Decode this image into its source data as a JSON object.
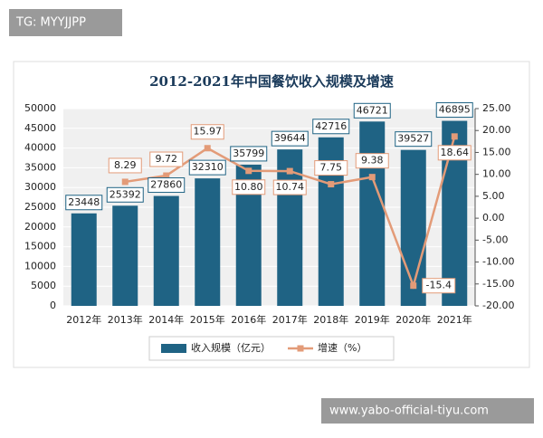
{
  "overlay": {
    "top_label": "TG: MYYJJPP",
    "bottom_label": "www.yabo-official-tiyu.com"
  },
  "chart_data": {
    "type": "bar",
    "title": "2012-2021年中国餐饮收入规模及增速",
    "categories": [
      "2012年",
      "2013年",
      "2014年",
      "2015年",
      "2016年",
      "2017年",
      "2018年",
      "2019年",
      "2020年",
      "2021年"
    ],
    "series": [
      {
        "name": "收入规模（亿元）",
        "color": "#1f6384",
        "values": [
          23448,
          25392,
          27860,
          32310,
          35799,
          39644,
          42716,
          46721,
          39527,
          46895
        ]
      },
      {
        "name": "增速（%）",
        "color": "#e39b78",
        "type": "line",
        "axis": "y2",
        "values": [
          null,
          8.29,
          9.72,
          15.97,
          10.8,
          10.74,
          7.75,
          9.38,
          -15.4,
          18.64
        ],
        "value_labels": [
          null,
          "8.29",
          "9.72",
          "15.97",
          "10.80",
          "10.74",
          "7.75",
          "9.38",
          "-15.4",
          "18.64"
        ]
      }
    ],
    "ylim": [
      0,
      50000
    ],
    "yticks": [
      0,
      5000,
      10000,
      15000,
      20000,
      25000,
      30000,
      35000,
      40000,
      45000,
      50000
    ],
    "y2lim": [
      -20,
      25
    ],
    "y2ticks": [
      {
        "value": -20,
        "label": "-20.00"
      },
      {
        "value": -15,
        "label": "-15.00"
      },
      {
        "value": -10,
        "label": "-10.00"
      },
      {
        "value": -5,
        "label": "-5.00"
      },
      {
        "value": 0,
        "label": "0.00"
      },
      {
        "value": 5,
        "label": "5.00"
      },
      {
        "value": 10,
        "label": "10.00"
      },
      {
        "value": 15,
        "label": "15.00"
      },
      {
        "value": 20,
        "label": "20.00"
      },
      {
        "value": 25,
        "label": "25.00"
      }
    ],
    "legend": "bottom"
  }
}
